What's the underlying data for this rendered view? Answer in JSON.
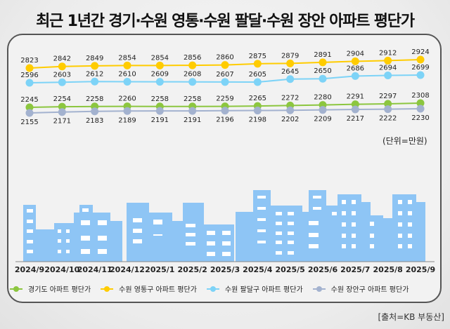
{
  "title": "최근 1년간 경기·수원 영통·수원 팔달·수원 장안 아파트 평단가",
  "unit_label": "(단위=만원)",
  "source_label": "[출처=KB 부동산]",
  "chart_data": {
    "type": "line",
    "title": "최근 1년간 경기·수원 영통·수원 팔달·수원 장안 아파트 평단가",
    "xlabel": "",
    "ylabel": "",
    "unit": "만원",
    "categories": [
      "2024/9",
      "2024/10",
      "2024/11",
      "2024/12",
      "2025/1",
      "2025/2",
      "2025/3",
      "2025/4",
      "2025/5",
      "2025/6",
      "2025/7",
      "2025/8",
      "2025/9"
    ],
    "series": [
      {
        "name": "경기도 아파트 평단가",
        "color": "#8cc63f",
        "label_position": "above",
        "values": [
          2245,
          2254,
          2258,
          2260,
          2258,
          2258,
          2259,
          2265,
          2272,
          2280,
          2291,
          2297,
          2308
        ]
      },
      {
        "name": "수원 영통구 아파트 평단가",
        "color": "#ffcc00",
        "label_position": "above",
        "values": [
          2823,
          2842,
          2849,
          2854,
          2854,
          2856,
          2860,
          2875,
          2879,
          2891,
          2904,
          2912,
          2924
        ]
      },
      {
        "name": "수원 팔달구 아파트 평단가",
        "color": "#7dd3f7",
        "label_position": "above",
        "values": [
          2596,
          2603,
          2612,
          2610,
          2609,
          2608,
          2607,
          2605,
          2645,
          2650,
          2686,
          2694,
          2699
        ]
      },
      {
        "name": "수원 장안구 아파트 평단가",
        "color": "#a3b2cf",
        "label_position": "below",
        "values": [
          2155,
          2171,
          2183,
          2189,
          2191,
          2191,
          2196,
          2198,
          2202,
          2209,
          2217,
          2222,
          2230
        ]
      }
    ],
    "grid": false,
    "legend_position": "bottom",
    "decoration": "building skyline silhouette in #8ec5f5 behind x-axis"
  }
}
